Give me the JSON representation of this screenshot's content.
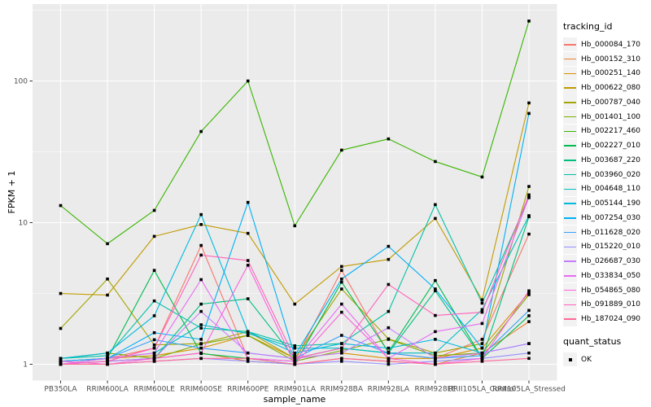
{
  "chart_data": {
    "type": "line",
    "title": "",
    "xlabel": "sample_name",
    "ylabel": "FPKM + 1",
    "y_scale": "log10",
    "y_ticks": [
      1,
      10,
      100
    ],
    "y_minor_gridlines": [
      3.162,
      31.62,
      316.2
    ],
    "ylim_log10": [
      -0.12,
      2.55
    ],
    "grid": "white-on-gray",
    "panel_bg": "#ebebeb",
    "gridline_color": "#ffffff",
    "tick_color": "#333333",
    "tick_label_color": "#4d4d4d",
    "point_shape": "filled-square",
    "point_color": "#000000",
    "legend_position": "right",
    "categories": [
      "PB350LA",
      "RRIM600LA",
      "RRIM600LE",
      "RRIM600SE",
      "RRIM600PE",
      "RRIM901LA",
      "RRIM928BA",
      "RRIM928LA",
      "RRIM928LE",
      "RRII105LA_Control",
      "RRII105LA_Stressed"
    ],
    "series": [
      {
        "name": "Hb_000084_170",
        "color": "#F8766D",
        "values": [
          1.05,
          1.1,
          1.3,
          6.9,
          1.1,
          1.05,
          4.6,
          1.2,
          1.1,
          1.5,
          8.3
        ]
      },
      {
        "name": "Hb_000152_310",
        "color": "#EA8331",
        "values": [
          1.0,
          1.05,
          1.1,
          1.2,
          1.05,
          1.0,
          1.1,
          1.05,
          1.0,
          1.2,
          2.0
        ]
      },
      {
        "name": "Hb_000251_140",
        "color": "#D89000",
        "values": [
          1.0,
          1.1,
          1.15,
          1.3,
          1.6,
          1.1,
          1.2,
          1.1,
          1.1,
          1.3,
          3.2
        ]
      },
      {
        "name": "Hb_000622_080",
        "color": "#C09B00",
        "values": [
          3.16,
          3.08,
          8.0,
          9.7,
          8.4,
          2.66,
          4.9,
          5.5,
          10.7,
          2.85,
          70
        ]
      },
      {
        "name": "Hb_000787_040",
        "color": "#A3A500",
        "values": [
          1.79,
          4.0,
          1.37,
          1.4,
          1.7,
          1.1,
          3.4,
          1.51,
          1.2,
          1.4,
          18
        ]
      },
      {
        "name": "Hb_001401_100",
        "color": "#7CAE00",
        "values": [
          1.1,
          1.2,
          1.1,
          1.39,
          1.6,
          1.05,
          1.25,
          1.5,
          1.15,
          1.2,
          3.1
        ]
      },
      {
        "name": "Hb_002217_460",
        "color": "#39B600",
        "values": [
          13.2,
          7.1,
          12.2,
          44,
          100,
          9.5,
          32.5,
          39,
          27,
          21,
          265
        ]
      },
      {
        "name": "Hb_002227_010",
        "color": "#00BB4E",
        "values": [
          1.05,
          1.1,
          4.6,
          1.19,
          1.1,
          1.0,
          3.8,
          1.22,
          3.9,
          1.1,
          2.2
        ]
      },
      {
        "name": "Hb_003687_220",
        "color": "#00BF7D",
        "values": [
          1.0,
          1.05,
          1.1,
          2.66,
          2.9,
          1.1,
          1.3,
          1.2,
          3.3,
          1.1,
          11.0
        ]
      },
      {
        "name": "Hb_003960_020",
        "color": "#00C1A3",
        "values": [
          1.1,
          1.15,
          2.8,
          1.8,
          1.7,
          1.35,
          1.4,
          2.36,
          13.4,
          2.7,
          15.0
        ]
      },
      {
        "name": "Hb_004648_110",
        "color": "#00BFC4",
        "values": [
          1.05,
          1.1,
          1.2,
          1.9,
          1.65,
          1.3,
          1.3,
          1.2,
          1.2,
          2.43,
          11.2
        ]
      },
      {
        "name": "Hb_005144_190",
        "color": "#00BAE0",
        "values": [
          1.1,
          1.2,
          2.2,
          11.4,
          1.7,
          1.2,
          1.4,
          1.3,
          1.5,
          1.2,
          1.4
        ]
      },
      {
        "name": "Hb_007254_030",
        "color": "#00B0F6",
        "values": [
          1.0,
          1.1,
          1.67,
          1.5,
          13.9,
          1.15,
          4.0,
          6.8,
          3.4,
          1.3,
          59
        ]
      },
      {
        "name": "Hb_011628_020",
        "color": "#35A2FF",
        "values": [
          1.05,
          1.1,
          1.49,
          1.3,
          1.2,
          1.1,
          1.6,
          1.2,
          1.1,
          1.15,
          2.4
        ]
      },
      {
        "name": "Hb_015220_010",
        "color": "#9590FF",
        "values": [
          1.0,
          1.0,
          1.05,
          1.1,
          1.05,
          1.0,
          1.05,
          1.0,
          1.05,
          1.1,
          1.2
        ]
      },
      {
        "name": "Hb_026687_030",
        "color": "#C77CFF",
        "values": [
          1.0,
          1.05,
          1.1,
          2.36,
          1.2,
          1.1,
          1.2,
          1.81,
          1.1,
          1.2,
          1.4
        ]
      },
      {
        "name": "Hb_033834_050",
        "color": "#E76BF3",
        "values": [
          1.0,
          1.1,
          1.2,
          3.96,
          1.1,
          1.05,
          2.66,
          1.1,
          1.7,
          1.94,
          15.2
        ]
      },
      {
        "name": "Hb_054865_080",
        "color": "#FA62DB",
        "values": [
          1.05,
          1.0,
          1.1,
          1.2,
          5.0,
          1.0,
          2.33,
          1.1,
          1.0,
          1.1,
          3.3
        ]
      },
      {
        "name": "Hb_091889_010",
        "color": "#FF62BC",
        "values": [
          1.0,
          1.05,
          1.3,
          5.9,
          5.4,
          1.1,
          1.3,
          3.66,
          2.21,
          2.33,
          15.7
        ]
      },
      {
        "name": "Hb_187024_090",
        "color": "#FF6A98",
        "values": [
          1.0,
          1.0,
          1.05,
          1.1,
          1.1,
          1.0,
          1.1,
          1.05,
          1.0,
          1.05,
          1.1
        ]
      }
    ]
  },
  "legend": {
    "color_title": "tracking_id",
    "shape_title": "quant_status",
    "shape_items": [
      {
        "label": "OK"
      }
    ]
  }
}
